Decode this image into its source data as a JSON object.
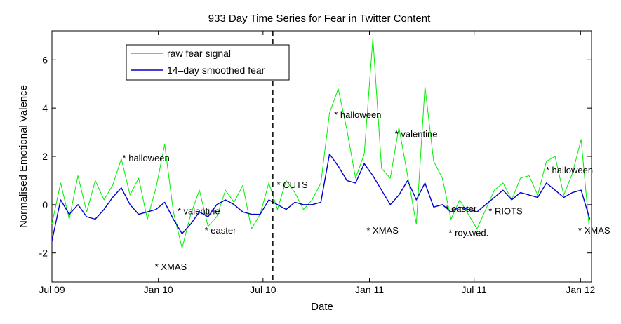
{
  "chart_data": {
    "type": "line",
    "title": "933 Day Time Series for Fear in Twitter Content",
    "xlabel": "Date",
    "ylabel": "Normalised Emotional Valence",
    "x_ticks": [
      "Jul 09",
      "Jan 10",
      "Jul 10",
      "Jan 11",
      "Jul 11",
      "Jan 12"
    ],
    "x_range_days": [
      0,
      933
    ],
    "y_ticks": [
      "-2",
      "0",
      "2",
      "4",
      "6"
    ],
    "ylim": [
      -3.2,
      7.2
    ],
    "grid": false,
    "legend": "top-left",
    "colors": {
      "raw": "#00ee00",
      "smoothed": "#0000cc"
    },
    "series": [
      {
        "name": "raw fear signal",
        "color": "#00ee00",
        "x": [
          0,
          15,
          30,
          45,
          60,
          75,
          90,
          105,
          120,
          135,
          150,
          165,
          180,
          195,
          210,
          225,
          240,
          255,
          270,
          285,
          300,
          315,
          330,
          345,
          360,
          375,
          390,
          405,
          420,
          435,
          450,
          465,
          480,
          495,
          510,
          525,
          540,
          555,
          570,
          585,
          600,
          615,
          630,
          645,
          660,
          675,
          690,
          705,
          720,
          735,
          750,
          765,
          780,
          795,
          810,
          825,
          840,
          855,
          870,
          885,
          900,
          915,
          930
        ],
        "y": [
          -0.8,
          0.9,
          -0.6,
          1.2,
          -0.3,
          1.0,
          0.2,
          0.8,
          1.9,
          0.4,
          1.1,
          -0.6,
          0.7,
          2.5,
          -0.3,
          -1.8,
          -0.4,
          0.6,
          -0.9,
          -0.5,
          0.6,
          0.1,
          0.8,
          -1.0,
          -0.4,
          0.9,
          -0.2,
          1.0,
          0.5,
          -0.2,
          0.2,
          0.9,
          3.8,
          4.8,
          3.1,
          1.1,
          2.1,
          6.9,
          1.5,
          1.1,
          3.2,
          1.2,
          -0.8,
          4.9,
          1.8,
          1.1,
          -0.6,
          0.2,
          -0.4,
          -1.0,
          -0.2,
          0.6,
          0.9,
          0.2,
          1.1,
          1.2,
          0.4,
          1.8,
          2.0,
          0.4,
          1.3,
          2.7,
          -1.2
        ]
      },
      {
        "name": "14–day smoothed fear",
        "color": "#0000cc",
        "x": [
          0,
          15,
          30,
          45,
          60,
          75,
          90,
          105,
          120,
          135,
          150,
          165,
          180,
          195,
          210,
          225,
          240,
          255,
          270,
          285,
          300,
          315,
          330,
          345,
          360,
          375,
          390,
          405,
          420,
          435,
          450,
          465,
          480,
          495,
          510,
          525,
          540,
          555,
          570,
          585,
          600,
          615,
          630,
          645,
          660,
          675,
          690,
          705,
          720,
          735,
          750,
          765,
          780,
          795,
          810,
          825,
          840,
          855,
          870,
          885,
          900,
          915,
          930
        ],
        "y": [
          -1.5,
          0.2,
          -0.4,
          0.0,
          -0.5,
          -0.6,
          -0.2,
          0.3,
          0.7,
          0.0,
          -0.4,
          -0.3,
          -0.2,
          0.1,
          -0.6,
          -1.2,
          -0.8,
          -0.3,
          -0.5,
          0.0,
          0.2,
          0.0,
          -0.3,
          -0.4,
          -0.4,
          0.2,
          0.0,
          -0.2,
          0.1,
          0.0,
          0.0,
          0.1,
          2.1,
          1.6,
          1.0,
          0.9,
          1.7,
          1.2,
          0.6,
          0.0,
          0.4,
          1.0,
          0.2,
          0.9,
          -0.1,
          0.0,
          -0.3,
          -0.1,
          -0.2,
          -0.3,
          0.0,
          0.3,
          0.6,
          0.2,
          0.5,
          0.4,
          0.3,
          0.9,
          0.6,
          0.3,
          0.5,
          0.6,
          -0.6
        ]
      }
    ],
    "vertical_line_day": 382,
    "annotations": [
      {
        "text": "* halloween",
        "day": 122,
        "y": 1.8
      },
      {
        "text": "* XMAS",
        "day": 178,
        "y": -2.7
      },
      {
        "text": "* valentine",
        "day": 217,
        "y": -0.4
      },
      {
        "text": "* easter",
        "day": 264,
        "y": -1.2
      },
      {
        "text": "* CUTS",
        "day": 389,
        "y": 0.7
      },
      {
        "text": "* halloween",
        "day": 488,
        "y": 3.6
      },
      {
        "text": "* XMAS",
        "day": 544,
        "y": -1.2
      },
      {
        "text": "* valentine",
        "day": 593,
        "y": 2.8
      },
      {
        "text": "* easter",
        "day": 680,
        "y": -0.3
      },
      {
        "text": "* roy.wed.",
        "day": 686,
        "y": -1.3
      },
      {
        "text": "* RIOTS",
        "day": 755,
        "y": -0.4
      },
      {
        "text": "* halloween",
        "day": 854,
        "y": 1.3
      },
      {
        "text": "* XMAS",
        "day": 910,
        "y": -1.2
      }
    ]
  }
}
